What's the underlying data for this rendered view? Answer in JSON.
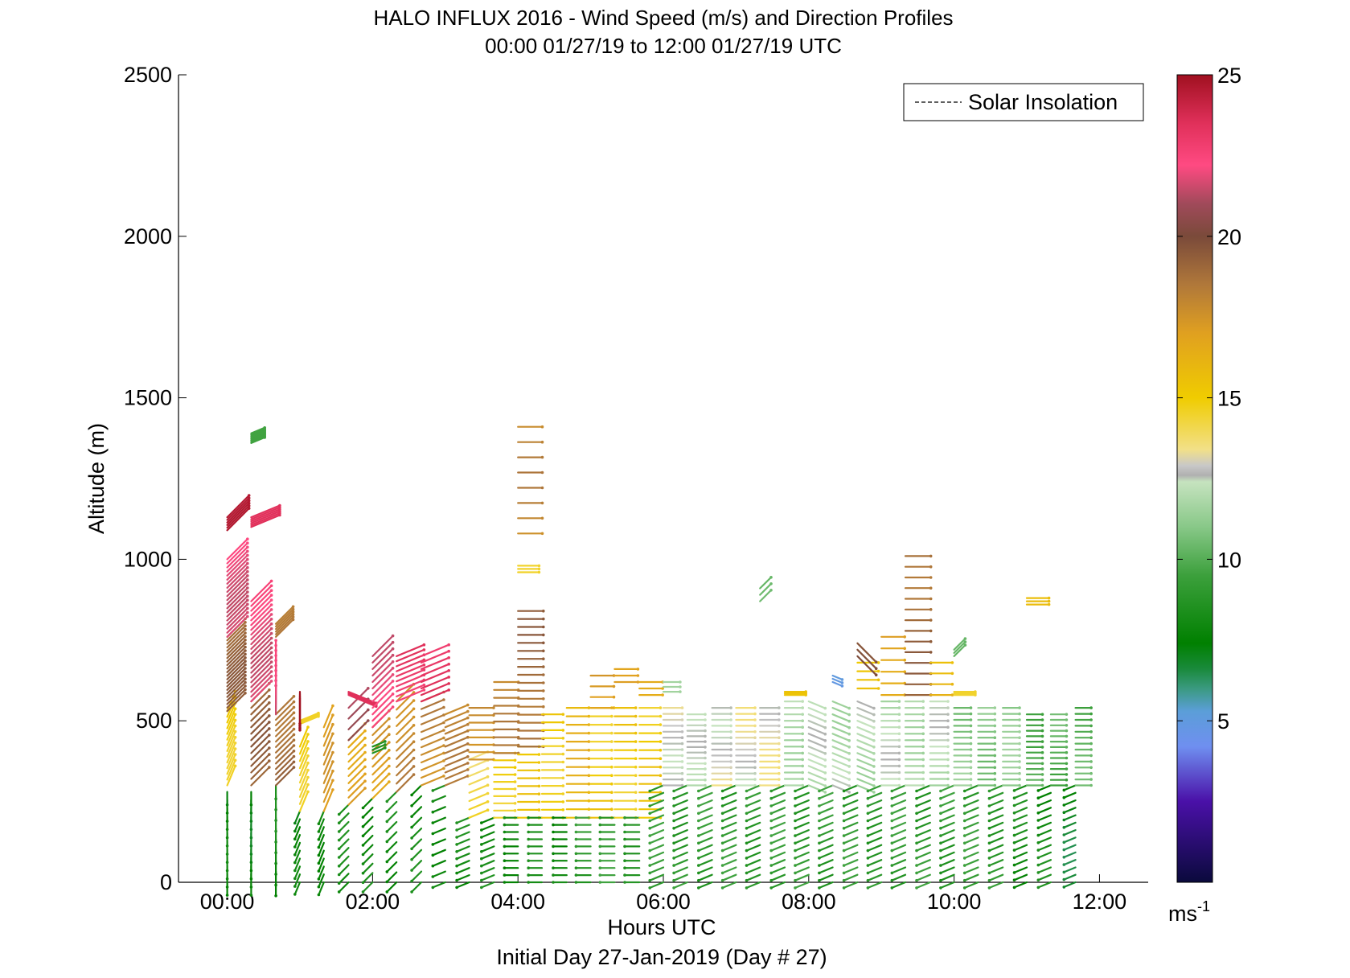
{
  "chart_data": {
    "type": "quiver",
    "title": "HALO INFLUX 2016 - Wind Speed (m/s) and Direction Profiles",
    "subtitle": "00:00 01/27/19 to 12:00 01/27/19  UTC",
    "xlabel": "Hours UTC",
    "xlabel2": "Initial Day 27-Jan-2019 (Day # 27)",
    "ylabel": "Altitude (m)",
    "xlim": [
      -0.67,
      12.67
    ],
    "ylim": [
      0,
      2500
    ],
    "x_ticks": [
      {
        "value": 0,
        "label": "00:00"
      },
      {
        "value": 2,
        "label": "02:00"
      },
      {
        "value": 4,
        "label": "04:00"
      },
      {
        "value": 6,
        "label": "06:00"
      },
      {
        "value": 8,
        "label": "08:00"
      },
      {
        "value": 10,
        "label": "10:00"
      },
      {
        "value": 12,
        "label": "12:00"
      }
    ],
    "y_ticks": [
      {
        "value": 0,
        "label": "0"
      },
      {
        "value": 500,
        "label": "500"
      },
      {
        "value": 1000,
        "label": "1000"
      },
      {
        "value": 1500,
        "label": "1500"
      },
      {
        "value": 2000,
        "label": "2000"
      },
      {
        "value": 2500,
        "label": "2500"
      }
    ],
    "legend": {
      "entries": [
        "Solar Insolation"
      ],
      "placement": "top-right"
    },
    "colorbar": {
      "range": [
        0,
        25
      ],
      "ticks": [
        {
          "value": 5,
          "label": "5"
        },
        {
          "value": 10,
          "label": "10"
        },
        {
          "value": 15,
          "label": "15"
        },
        {
          "value": 20,
          "label": "20"
        },
        {
          "value": 25,
          "label": "25"
        }
      ],
      "unit": "ms",
      "unit_exponent": "-1",
      "stops": [
        {
          "v": 0,
          "c": "#0a0a3c"
        },
        {
          "v": 2.5,
          "c": "#4a10a8"
        },
        {
          "v": 4.2,
          "c": "#6f8ff0"
        },
        {
          "v": 5.3,
          "c": "#5b9ed8"
        },
        {
          "v": 6.0,
          "c": "#3a9a80"
        },
        {
          "v": 6.6,
          "c": "#1a8a3c"
        },
        {
          "v": 7.4,
          "c": "#008000"
        },
        {
          "v": 9.5,
          "c": "#3ca03c"
        },
        {
          "v": 11.0,
          "c": "#88c888"
        },
        {
          "v": 12.4,
          "c": "#c6e3bf"
        },
        {
          "v": 12.6,
          "c": "#b0b0b0"
        },
        {
          "v": 12.9,
          "c": "#c8c8c8"
        },
        {
          "v": 13.4,
          "c": "#f2e088"
        },
        {
          "v": 15.0,
          "c": "#f0cc00"
        },
        {
          "v": 17.0,
          "c": "#e0a020"
        },
        {
          "v": 18.5,
          "c": "#b0783a"
        },
        {
          "v": 20.0,
          "c": "#7a4a3a"
        },
        {
          "v": 21.0,
          "c": "#a04a5a"
        },
        {
          "v": 22.2,
          "c": "#ff4a82"
        },
        {
          "v": 23.5,
          "c": "#e0305a"
        },
        {
          "v": 25.0,
          "c": "#a01020"
        }
      ]
    },
    "wind_profiles": [
      {
        "t": 0.0,
        "ranges": [
          [
            0,
            280,
            7.5,
            "N",
            12
          ],
          [
            300,
            530,
            15,
            "SSW",
            14
          ],
          [
            530,
            760,
            19,
            "SW",
            22
          ],
          [
            760,
            1000,
            22,
            "SW",
            20
          ],
          [
            1090,
            1130,
            24,
            "SW",
            6
          ]
        ]
      },
      {
        "t": 0.33,
        "ranges": [
          [
            0,
            280,
            7.5,
            "N",
            12
          ],
          [
            300,
            560,
            19,
            "SW",
            14
          ],
          [
            560,
            870,
            22,
            "SW",
            22
          ],
          [
            1100,
            1130,
            24,
            "WSW",
            6
          ],
          [
            1360,
            1390,
            9,
            "WSW",
            8
          ]
        ]
      },
      {
        "t": 0.67,
        "ranges": [
          [
            0,
            300,
            8,
            "N",
            10
          ],
          [
            300,
            520,
            19,
            "SW",
            14
          ],
          [
            520,
            660,
            22,
            "S",
            10
          ],
          [
            760,
            800,
            18,
            "SW",
            6
          ]
        ]
      },
      {
        "t": 1.0,
        "ranges": [
          [
            0,
            220,
            7.5,
            "NNE",
            10
          ],
          [
            220,
            420,
            15,
            "SSW",
            10
          ],
          [
            490,
            500,
            14,
            "WSW",
            4
          ],
          [
            570,
            590,
            25,
            "N",
            4
          ]
        ]
      },
      {
        "t": 1.33,
        "ranges": [
          [
            0,
            220,
            8,
            "NNE",
            10
          ],
          [
            220,
            480,
            17,
            "SSW",
            10
          ]
        ]
      },
      {
        "t": 1.67,
        "ranges": [
          [
            0,
            240,
            8,
            "NE",
            10
          ],
          [
            240,
            440,
            17,
            "SW",
            10
          ],
          [
            440,
            540,
            21,
            "SW",
            4
          ],
          [
            580,
            590,
            23,
            "WNW",
            4
          ]
        ]
      },
      {
        "t": 2.0,
        "ranges": [
          [
            0,
            260,
            8,
            "NE",
            10
          ],
          [
            260,
            480,
            17,
            "SW",
            10
          ],
          [
            400,
            420,
            8,
            "WSW",
            3
          ],
          [
            480,
            700,
            22,
            "SW",
            12
          ]
        ]
      },
      {
        "t": 2.33,
        "ranges": [
          [
            0,
            280,
            8,
            "NE",
            10
          ],
          [
            280,
            560,
            18,
            "SW",
            12
          ],
          [
            560,
            700,
            23,
            "WSW",
            10
          ]
        ]
      },
      {
        "t": 2.67,
        "ranges": [
          [
            0,
            300,
            8,
            "NE",
            10
          ],
          [
            300,
            560,
            18,
            "WSW",
            12
          ],
          [
            560,
            700,
            23,
            "WSW",
            8
          ]
        ]
      },
      {
        "t": 3.0,
        "ranges": [
          [
            0,
            300,
            8,
            "ENE",
            10
          ],
          [
            300,
            520,
            18,
            "WSW",
            12
          ]
        ]
      },
      {
        "t": 3.33,
        "ranges": [
          [
            0,
            200,
            8,
            "ENE",
            10
          ],
          [
            200,
            380,
            14,
            "WSW",
            8
          ],
          [
            380,
            540,
            18,
            "W",
            8
          ]
        ]
      },
      {
        "t": 3.67,
        "ranges": [
          [
            0,
            200,
            8,
            "ENE",
            10
          ],
          [
            200,
            400,
            15,
            "W",
            10
          ],
          [
            400,
            620,
            18,
            "W",
            10
          ]
        ]
      },
      {
        "t": 4.0,
        "ranges": [
          [
            0,
            200,
            8,
            "E",
            10
          ],
          [
            200,
            420,
            15,
            "W",
            10
          ],
          [
            420,
            840,
            19,
            "W",
            18
          ],
          [
            960,
            980,
            15,
            "W",
            3
          ],
          [
            1080,
            1410,
            18,
            "W",
            8
          ]
        ]
      },
      {
        "t": 4.33,
        "ranges": [
          [
            0,
            200,
            8,
            "E",
            10
          ],
          [
            200,
            520,
            15,
            "W",
            14
          ]
        ]
      },
      {
        "t": 4.67,
        "ranges": [
          [
            0,
            200,
            8,
            "E",
            10
          ],
          [
            200,
            540,
            16,
            "W",
            14
          ]
        ]
      },
      {
        "t": 5.0,
        "ranges": [
          [
            0,
            200,
            9,
            "E",
            10
          ],
          [
            200,
            540,
            15,
            "W",
            14
          ],
          [
            540,
            640,
            17,
            "W",
            4
          ]
        ]
      },
      {
        "t": 5.33,
        "ranges": [
          [
            0,
            200,
            9,
            "E",
            10
          ],
          [
            200,
            540,
            15,
            "W",
            14
          ],
          [
            620,
            660,
            17,
            "W",
            3
          ]
        ]
      },
      {
        "t": 5.67,
        "ranges": [
          [
            0,
            200,
            9,
            "E",
            10
          ],
          [
            200,
            540,
            15,
            "W",
            14
          ],
          [
            580,
            620,
            17,
            "W",
            3
          ]
        ]
      },
      {
        "t": 6.0,
        "ranges": [
          [
            0,
            300,
            9,
            "ENE",
            14
          ],
          [
            300,
            540,
            13,
            "W",
            14
          ],
          [
            590,
            620,
            11,
            "W",
            3
          ]
        ]
      },
      {
        "t": 6.33,
        "ranges": [
          [
            0,
            300,
            9,
            "ENE",
            14
          ],
          [
            300,
            520,
            12,
            "W",
            14
          ]
        ]
      },
      {
        "t": 6.67,
        "ranges": [
          [
            0,
            300,
            9,
            "ENE",
            14
          ],
          [
            300,
            540,
            13,
            "W",
            14
          ]
        ]
      },
      {
        "t": 7.0,
        "ranges": [
          [
            0,
            300,
            9,
            "ENE",
            14
          ],
          [
            300,
            540,
            13,
            "W",
            14
          ]
        ]
      },
      {
        "t": 7.33,
        "ranges": [
          [
            0,
            300,
            9,
            "ENE",
            14
          ],
          [
            300,
            540,
            13,
            "W",
            14
          ],
          [
            870,
            910,
            10,
            "SW",
            3
          ]
        ]
      },
      {
        "t": 7.67,
        "ranges": [
          [
            0,
            300,
            9,
            "ENE",
            14
          ],
          [
            300,
            560,
            12,
            "W",
            14
          ],
          [
            580,
            590,
            15,
            "W",
            3
          ]
        ]
      },
      {
        "t": 8.0,
        "ranges": [
          [
            0,
            300,
            9,
            "ENE",
            14
          ],
          [
            300,
            560,
            12,
            "WNW",
            14
          ]
        ]
      },
      {
        "t": 8.33,
        "ranges": [
          [
            0,
            300,
            9,
            "ENE",
            14
          ],
          [
            300,
            560,
            12,
            "WNW",
            14
          ],
          [
            620,
            640,
            5,
            "WNW",
            3
          ]
        ]
      },
      {
        "t": 8.67,
        "ranges": [
          [
            0,
            300,
            9,
            "ENE",
            14
          ],
          [
            300,
            560,
            12,
            "WNW",
            14
          ],
          [
            600,
            680,
            15,
            "W",
            4
          ],
          [
            700,
            740,
            20,
            "NW",
            3
          ]
        ]
      },
      {
        "t": 9.0,
        "ranges": [
          [
            0,
            300,
            9,
            "ENE",
            14
          ],
          [
            300,
            560,
            12,
            "W",
            14
          ],
          [
            580,
            760,
            17,
            "W",
            6
          ]
        ]
      },
      {
        "t": 9.33,
        "ranges": [
          [
            0,
            300,
            9,
            "ENE",
            14
          ],
          [
            300,
            560,
            12,
            "W",
            14
          ],
          [
            580,
            1010,
            19,
            "W",
            14
          ]
        ]
      },
      {
        "t": 9.67,
        "ranges": [
          [
            0,
            300,
            9,
            "ENE",
            14
          ],
          [
            300,
            560,
            12,
            "W",
            14
          ],
          [
            580,
            680,
            16,
            "W",
            4
          ]
        ]
      },
      {
        "t": 10.0,
        "ranges": [
          [
            0,
            300,
            9,
            "ENE",
            14
          ],
          [
            300,
            540,
            11,
            "W",
            14
          ],
          [
            580,
            590,
            15,
            "W",
            3
          ],
          [
            700,
            720,
            10,
            "SW",
            3
          ]
        ]
      },
      {
        "t": 10.33,
        "ranges": [
          [
            0,
            300,
            9,
            "ENE",
            14
          ],
          [
            300,
            540,
            11,
            "W",
            14
          ]
        ]
      },
      {
        "t": 10.67,
        "ranges": [
          [
            0,
            300,
            9,
            "ENE",
            14
          ],
          [
            300,
            540,
            11,
            "W",
            14
          ]
        ]
      },
      {
        "t": 11.0,
        "ranges": [
          [
            0,
            300,
            8,
            "ENE",
            14
          ],
          [
            300,
            520,
            10,
            "W",
            14
          ],
          [
            860,
            880,
            16,
            "W",
            3
          ]
        ]
      },
      {
        "t": 11.33,
        "ranges": [
          [
            0,
            300,
            8,
            "ENE",
            14
          ],
          [
            300,
            520,
            10,
            "W",
            14
          ]
        ]
      },
      {
        "t": 11.67,
        "ranges": [
          [
            0,
            300,
            7,
            "ENE",
            14
          ],
          [
            300,
            540,
            10,
            "W",
            14
          ]
        ]
      }
    ]
  }
}
